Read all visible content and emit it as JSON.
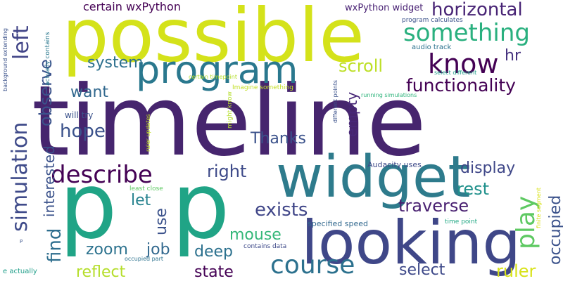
{
  "words": [
    {
      "text": "timeline",
      "color": "#46256e"
    },
    {
      "text": "possible",
      "color": "#d4e21a"
    },
    {
      "text": "widget",
      "color": "#2e7b8c"
    },
    {
      "text": "looking",
      "color": "#3f4788"
    },
    {
      "text": "program",
      "color": "#2a788e"
    },
    {
      "text": "p",
      "color": "#20a486"
    },
    {
      "text": "p",
      "color": "#20a486"
    },
    {
      "text": "simulation",
      "color": "#3e4a89"
    },
    {
      "text": "describe",
      "color": "#440154"
    },
    {
      "text": "course",
      "color": "#2c718e"
    },
    {
      "text": "know",
      "color": "#440154"
    },
    {
      "text": "something",
      "color": "#2ab07f"
    },
    {
      "text": "horizontal",
      "color": "#482475"
    },
    {
      "text": "functionality",
      "color": "#440154"
    },
    {
      "text": "left",
      "color": "#414487"
    },
    {
      "text": "observe",
      "color": "#3b528b"
    },
    {
      "text": "play",
      "color": "#5ec962"
    },
    {
      "text": "empty",
      "color": "#482878"
    },
    {
      "text": "hope",
      "color": "#3b528b"
    },
    {
      "text": "want",
      "color": "#31688e"
    },
    {
      "text": "system",
      "color": "#2d708e"
    },
    {
      "text": "scroll",
      "color": "#bddf26"
    },
    {
      "text": "hr",
      "color": "#46337f"
    },
    {
      "text": "Thanks",
      "color": "#3b528b"
    },
    {
      "text": "right",
      "color": "#3e4a89"
    },
    {
      "text": "display",
      "color": "#3f4788"
    },
    {
      "text": "exists",
      "color": "#404688"
    },
    {
      "text": "traverse",
      "color": "#481f70"
    },
    {
      "text": "rest",
      "color": "#21918c"
    },
    {
      "text": "interested",
      "color": "#3b528b"
    },
    {
      "text": "find",
      "color": "#2e6e8e"
    },
    {
      "text": "let",
      "color": "#26828e"
    },
    {
      "text": "use",
      "color": "#3b528b"
    },
    {
      "text": "zoom",
      "color": "#2c728e"
    },
    {
      "text": "job",
      "color": "#31688e"
    },
    {
      "text": "mouse",
      "color": "#35b779"
    },
    {
      "text": "deep",
      "color": "#2c718e"
    },
    {
      "text": "select",
      "color": "#3e4989"
    },
    {
      "text": "reflect",
      "color": "#b5de2b"
    },
    {
      "text": "state",
      "color": "#440154"
    },
    {
      "text": "ruler",
      "color": "#d8e219"
    },
    {
      "text": "occupied",
      "color": "#3b528b"
    },
    {
      "text": "certain wxPython",
      "color": "#440154"
    },
    {
      "text": "wxPython widget",
      "color": "#482173"
    },
    {
      "text": "Audacity uses",
      "color": "#3e4a89"
    },
    {
      "text": "specified speed",
      "color": "#31688e"
    },
    {
      "text": "contains data",
      "color": "#3e4a89"
    },
    {
      "text": "will try",
      "color": "#3b528b"
    },
    {
      "text": "program calculates",
      "color": "#3b528b"
    },
    {
      "text": "audio track",
      "color": "#2c728e"
    },
    {
      "text": "select different",
      "color": "#1f9e89"
    },
    {
      "text": "running simulations",
      "color": "#2fb47c"
    },
    {
      "text": "Imagine something",
      "color": "#c2df23"
    },
    {
      "text": "least close",
      "color": "#5ec962"
    },
    {
      "text": "time point",
      "color": "#22a884"
    },
    {
      "text": "occupied part",
      "color": "#2c728e"
    },
    {
      "text": "e actually",
      "color": "#1f9e89"
    },
    {
      "text": "background extending",
      "color": "#3b528b"
    },
    {
      "text": "actually contains",
      "color": "#2a788e"
    },
    {
      "text": "certain timepoint",
      "color": "#b5de2b"
    },
    {
      "text": "ruler updates",
      "color": "#c2df23"
    },
    {
      "text": "might know",
      "color": "#b5de2b"
    },
    {
      "text": "different points",
      "color": "#3b528b"
    },
    {
      "text": "finite segment",
      "color": "#d8e219"
    },
    {
      "text": "P",
      "color": "#3b528b"
    }
  ]
}
